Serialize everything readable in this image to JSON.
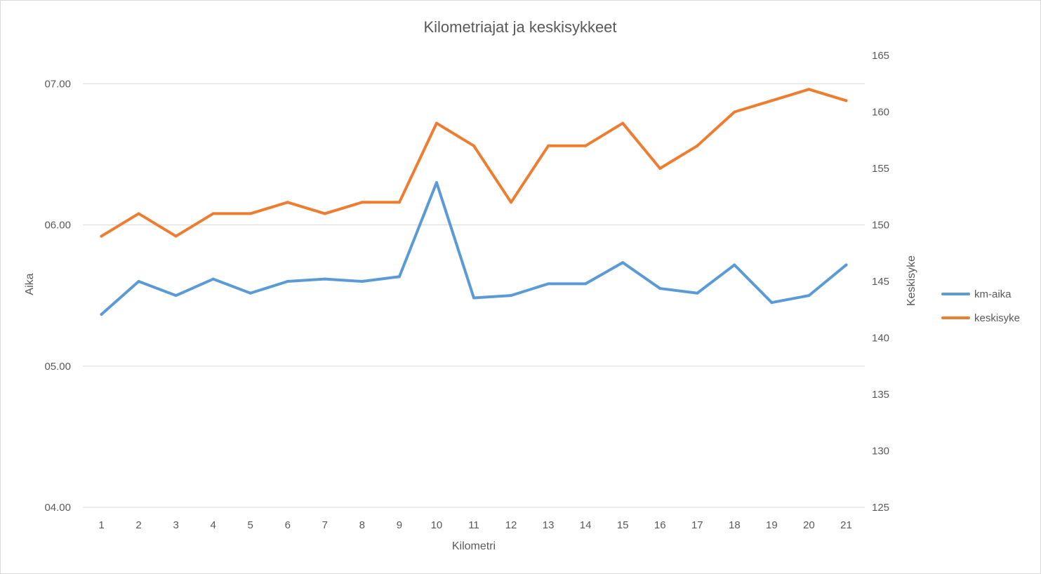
{
  "chart_data": {
    "type": "line",
    "title": "Kilometriajat ja keskisykkeet",
    "xlabel": "Kilometri",
    "ylabel": "Aika",
    "y2label": "Keskisyke",
    "categories": [
      "1",
      "2",
      "3",
      "4",
      "5",
      "6",
      "7",
      "8",
      "9",
      "10",
      "11",
      "12",
      "13",
      "14",
      "15",
      "16",
      "17",
      "18",
      "19",
      "20",
      "21"
    ],
    "series": [
      {
        "name": "km-aika",
        "axis": "left",
        "color": "#5B9BD5",
        "values": [
          "05.22",
          "05.36",
          "05.30",
          "05.37",
          "05.31",
          "05.36",
          "05.37",
          "05.36",
          "05.38",
          "06.18",
          "05.29",
          "05.30",
          "05.35",
          "05.35",
          "05.44",
          "05.33",
          "05.31",
          "05.43",
          "05.27",
          "05.30",
          "05.43"
        ]
      },
      {
        "name": "keskisyke",
        "axis": "right",
        "color": "#ED7D31",
        "values": [
          149,
          151,
          149,
          151,
          151,
          152,
          151,
          152,
          152,
          159,
          157,
          152,
          157,
          157,
          159,
          155,
          157,
          160,
          161,
          162,
          161
        ]
      }
    ],
    "y_ticks": [
      "04.00",
      "05.00",
      "06.00",
      "07.00"
    ],
    "y2_ticks": [
      125,
      130,
      135,
      140,
      145,
      150,
      155,
      160,
      165
    ],
    "ylim": [
      "04.00",
      "07.12"
    ],
    "y2lim": [
      125,
      165
    ],
    "grid": true,
    "legend": "right"
  }
}
